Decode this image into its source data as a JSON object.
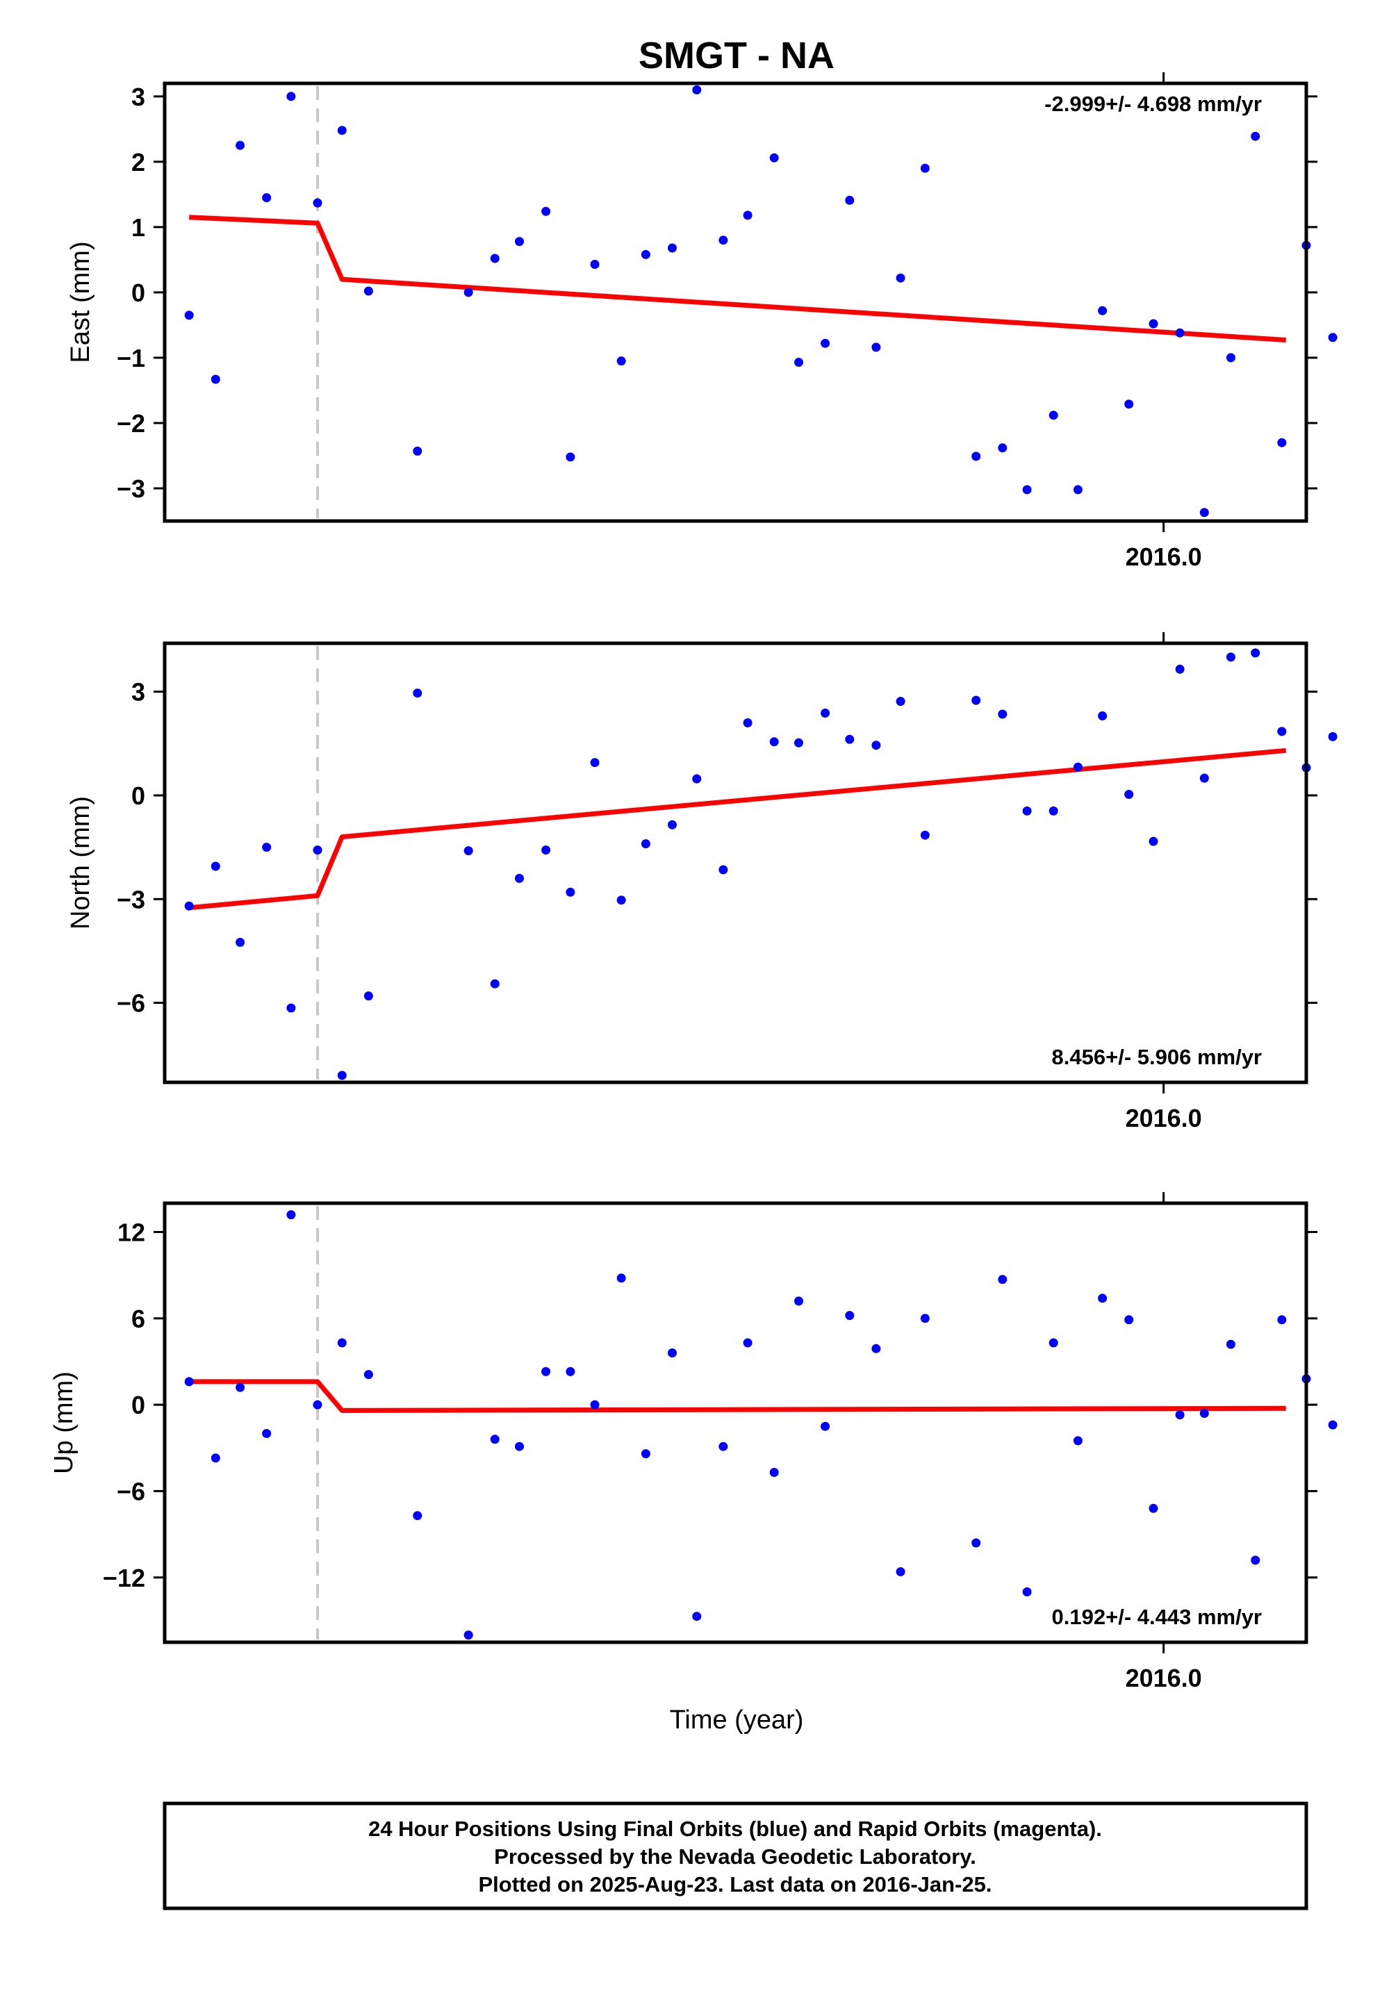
{
  "chart_data": {
    "type": "scatter",
    "title": "SMGT - NA",
    "xlabel": "Time (year)",
    "x_tick_label": "2016.0",
    "x_range": [
      2015.51,
      2016.07
    ],
    "offset_marker_x": 2015.585,
    "colors": {
      "points": "#0000ff",
      "fit": "#ff0000",
      "offset_line": "#c8c8c8"
    },
    "panels": [
      {
        "name": "east",
        "ylabel": "East (mm)",
        "ylim": [
          -3.5,
          3.2
        ],
        "yticks": [
          3,
          2,
          1,
          0,
          -1,
          -2,
          -3
        ],
        "ytick_labels": [
          "3",
          "2",
          "1",
          "0",
          "−1",
          "−2",
          "−3"
        ],
        "rate_label": "-2.999+/- 4.698 mm/yr",
        "rate_position": "top-right",
        "fit": [
          [
            2015.522,
            1.15
          ],
          [
            2015.585,
            1.06
          ],
          [
            2015.597,
            0.2
          ],
          [
            2016.06,
            -0.73
          ]
        ],
        "points": [
          [
            2015.522,
            -0.35
          ],
          [
            2015.535,
            -1.33
          ],
          [
            2015.547,
            2.25
          ],
          [
            2015.56,
            1.45
          ],
          [
            2015.572,
            3.0
          ],
          [
            2015.585,
            1.37
          ],
          [
            2015.597,
            2.48
          ],
          [
            2015.61,
            0.02
          ],
          [
            2015.634,
            -2.43
          ],
          [
            2015.659,
            0.0
          ],
          [
            2015.672,
            0.52
          ],
          [
            2015.684,
            0.78
          ],
          [
            2015.697,
            1.24
          ],
          [
            2015.709,
            -2.52
          ],
          [
            2015.721,
            0.43
          ],
          [
            2015.734,
            -1.05
          ],
          [
            2015.746,
            0.58
          ],
          [
            2015.759,
            0.68
          ],
          [
            2015.771,
            3.1
          ],
          [
            2015.784,
            0.8
          ],
          [
            2015.796,
            1.18
          ],
          [
            2015.809,
            2.06
          ],
          [
            2015.821,
            -1.07
          ],
          [
            2015.834,
            -0.78
          ],
          [
            2015.846,
            1.41
          ],
          [
            2015.859,
            -0.84
          ],
          [
            2015.871,
            0.22
          ],
          [
            2015.883,
            1.9
          ],
          [
            2015.908,
            -2.51
          ],
          [
            2015.921,
            -2.38
          ],
          [
            2015.933,
            -3.02
          ],
          [
            2015.946,
            -1.88
          ],
          [
            2015.958,
            -3.02
          ],
          [
            2015.97,
            -0.28
          ],
          [
            2015.983,
            -1.71
          ],
          [
            2015.995,
            -0.48
          ],
          [
            2016.008,
            -0.62
          ],
          [
            2016.02,
            -3.37
          ],
          [
            2016.033,
            -1.0
          ],
          [
            2016.045,
            2.39
          ],
          [
            2016.058,
            -2.3
          ],
          [
            2016.07,
            0.72
          ],
          [
            2016.083,
            -0.69
          ]
        ]
      },
      {
        "name": "north",
        "ylabel": "North (mm)",
        "ylim": [
          -8.3,
          4.4
        ],
        "yticks": [
          3,
          0,
          -3,
          -6
        ],
        "ytick_labels": [
          "3",
          "0",
          "−3",
          "−6"
        ],
        "rate_label": "8.456+/- 5.906 mm/yr",
        "rate_position": "bottom-right",
        "fit": [
          [
            2015.522,
            -3.25
          ],
          [
            2015.585,
            -2.9
          ],
          [
            2015.597,
            -1.2
          ],
          [
            2016.06,
            1.3
          ]
        ],
        "points": [
          [
            2015.522,
            -3.2
          ],
          [
            2015.535,
            -2.05
          ],
          [
            2015.547,
            -4.25
          ],
          [
            2015.56,
            -1.5
          ],
          [
            2015.572,
            -6.15
          ],
          [
            2015.585,
            -1.58
          ],
          [
            2015.597,
            -8.1
          ],
          [
            2015.61,
            -5.8
          ],
          [
            2015.634,
            2.96
          ],
          [
            2015.659,
            -1.6
          ],
          [
            2015.672,
            -5.45
          ],
          [
            2015.684,
            -2.4
          ],
          [
            2015.697,
            -1.58
          ],
          [
            2015.709,
            -2.8
          ],
          [
            2015.721,
            0.95
          ],
          [
            2015.734,
            -3.03
          ],
          [
            2015.746,
            -1.4
          ],
          [
            2015.759,
            -0.85
          ],
          [
            2015.771,
            0.48
          ],
          [
            2015.784,
            -2.15
          ],
          [
            2015.796,
            2.1
          ],
          [
            2015.809,
            1.55
          ],
          [
            2015.821,
            1.52
          ],
          [
            2015.834,
            2.38
          ],
          [
            2015.846,
            1.62
          ],
          [
            2015.859,
            1.45
          ],
          [
            2015.871,
            2.72
          ],
          [
            2015.883,
            -1.15
          ],
          [
            2015.908,
            2.75
          ],
          [
            2015.921,
            2.35
          ],
          [
            2015.933,
            -0.45
          ],
          [
            2015.946,
            -0.45
          ],
          [
            2015.958,
            0.82
          ],
          [
            2015.97,
            2.3
          ],
          [
            2015.983,
            0.03
          ],
          [
            2015.995,
            -1.33
          ],
          [
            2016.008,
            3.65
          ],
          [
            2016.02,
            0.5
          ],
          [
            2016.033,
            4.0
          ],
          [
            2016.045,
            4.12
          ],
          [
            2016.058,
            1.85
          ],
          [
            2016.07,
            0.8
          ],
          [
            2016.083,
            1.7
          ]
        ]
      },
      {
        "name": "up",
        "ylabel": "Up (mm)",
        "ylim": [
          -16.5,
          14.0
        ],
        "yticks": [
          12,
          6,
          0,
          -6,
          -12
        ],
        "ytick_labels": [
          "12",
          "6",
          "0",
          "−6",
          "−12"
        ],
        "rate_label": "0.192+/- 4.443 mm/yr",
        "rate_position": "bottom-right",
        "fit": [
          [
            2015.522,
            1.6
          ],
          [
            2015.585,
            1.6
          ],
          [
            2015.597,
            -0.4
          ],
          [
            2016.06,
            -0.25
          ]
        ],
        "points": [
          [
            2015.522,
            1.6
          ],
          [
            2015.535,
            -3.7
          ],
          [
            2015.547,
            1.2
          ],
          [
            2015.56,
            -2.0
          ],
          [
            2015.572,
            13.2
          ],
          [
            2015.585,
            0.0
          ],
          [
            2015.597,
            4.3
          ],
          [
            2015.61,
            2.1
          ],
          [
            2015.634,
            -7.7
          ],
          [
            2015.659,
            -16.0
          ],
          [
            2015.672,
            -2.4
          ],
          [
            2015.684,
            -2.9
          ],
          [
            2015.697,
            2.3
          ],
          [
            2015.709,
            2.3
          ],
          [
            2015.721,
            0.0
          ],
          [
            2015.734,
            8.8
          ],
          [
            2015.746,
            -3.4
          ],
          [
            2015.759,
            3.6
          ],
          [
            2015.771,
            -14.7
          ],
          [
            2015.784,
            -2.9
          ],
          [
            2015.796,
            4.3
          ],
          [
            2015.809,
            -4.7
          ],
          [
            2015.821,
            7.2
          ],
          [
            2015.834,
            -1.5
          ],
          [
            2015.846,
            6.2
          ],
          [
            2015.859,
            3.9
          ],
          [
            2015.871,
            -11.6
          ],
          [
            2015.883,
            6.0
          ],
          [
            2015.908,
            -9.6
          ],
          [
            2015.921,
            8.7
          ],
          [
            2015.933,
            -13.0
          ],
          [
            2015.946,
            4.3
          ],
          [
            2015.958,
            -2.5
          ],
          [
            2015.97,
            7.4
          ],
          [
            2015.983,
            5.9
          ],
          [
            2015.995,
            -7.2
          ],
          [
            2016.008,
            -0.7
          ],
          [
            2016.02,
            -0.6
          ],
          [
            2016.033,
            4.2
          ],
          [
            2016.045,
            -10.8
          ],
          [
            2016.058,
            5.9
          ],
          [
            2016.07,
            1.8
          ],
          [
            2016.083,
            -1.4
          ]
        ]
      }
    ]
  },
  "footer": {
    "line1": "24 Hour Positions Using Final Orbits (blue) and Rapid Orbits (magenta).",
    "line2": "Processed by the Nevada Geodetic Laboratory.",
    "line3": "Plotted on 2025-Aug-23. Last data on 2016-Jan-25."
  }
}
